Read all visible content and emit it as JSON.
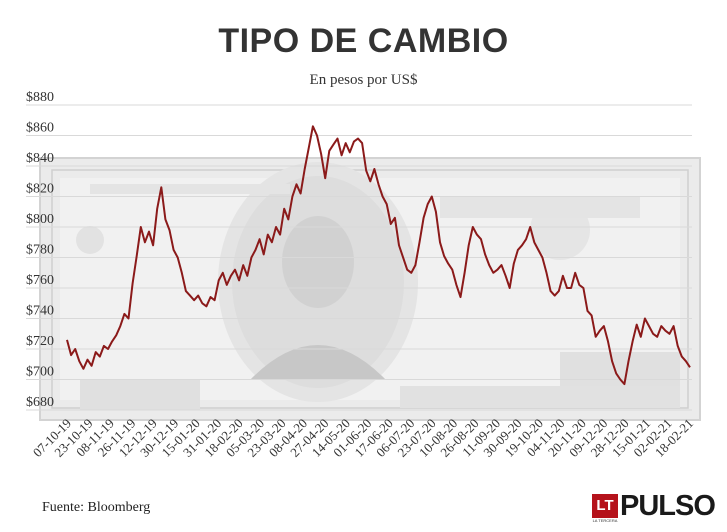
{
  "header": {
    "title": "TIPO DE CAMBIO",
    "subtitle": "En pesos por US$"
  },
  "footer": {
    "source": "Fuente: Bloomberg",
    "brand_box": "LT",
    "brand_box_sub": "LA TERCERA",
    "brand_name": "PULSO"
  },
  "colors": {
    "line": "#8b1a1a",
    "grid": "#d9d9d9",
    "text": "#333333",
    "brand": "#b5121b"
  },
  "background_image": "US 100 dollar banknote (Benjamin Franklin) in grayscale",
  "chart_data": {
    "type": "line",
    "title": "TIPO DE CAMBIO",
    "subtitle": "En pesos por US$",
    "xlabel": "",
    "ylabel": "",
    "ylim": [
      680,
      880
    ],
    "y_ticks": [
      "$680",
      "$700",
      "$720",
      "$740",
      "$760",
      "$780",
      "$800",
      "$820",
      "$840",
      "$860",
      "$880"
    ],
    "y_tick_values": [
      680,
      700,
      720,
      740,
      760,
      780,
      800,
      820,
      840,
      860,
      880
    ],
    "x_ticks": [
      "07-10-19",
      "23-10-19",
      "08-11-19",
      "26-11-19",
      "12-12-19",
      "30-12-19",
      "15-01-20",
      "31-01-20",
      "18-02-20",
      "05-03-20",
      "23-03-20",
      "08-04-20",
      "27-04-20",
      "14-05-20",
      "01-06-20",
      "17-06-20",
      "06-07-20",
      "23-07-20",
      "10-08-20",
      "26-08-20",
      "11-09-20",
      "30-09-20",
      "19-10-20",
      "04-11-20",
      "20-11-20",
      "09-12-20",
      "28-12-20",
      "15-01-21",
      "02-02-21",
      "18-02-21"
    ],
    "grid": true,
    "legend": "none",
    "series": [
      {
        "values": [
          726,
          716,
          720,
          712,
          707,
          713,
          709,
          718,
          715,
          722,
          720,
          725,
          729,
          735,
          743,
          740,
          763,
          781,
          800,
          790,
          797,
          788,
          812,
          826,
          805,
          798,
          785,
          780,
          770,
          758,
          755,
          752,
          755,
          750,
          748,
          754,
          752,
          765,
          770,
          762,
          768,
          772,
          765,
          775,
          768,
          780,
          785,
          792,
          782,
          795,
          790,
          800,
          795,
          812,
          805,
          820,
          828,
          822,
          838,
          852,
          866,
          860,
          848,
          832,
          850,
          854,
          858,
          847,
          855,
          849,
          856,
          858,
          855,
          837,
          830,
          838,
          828,
          820,
          815,
          802,
          806,
          788,
          780,
          772,
          770,
          775,
          790,
          806,
          815,
          820,
          810,
          790,
          781,
          776,
          772,
          762,
          754,
          770,
          788,
          800,
          795,
          792,
          782,
          775,
          770,
          772,
          775,
          768,
          760,
          776,
          785,
          788,
          792,
          800,
          790,
          785,
          780,
          770,
          758,
          755,
          758,
          768,
          760,
          760,
          770,
          762,
          760,
          745,
          742,
          728,
          732,
          735,
          725,
          712,
          704,
          700,
          697,
          712,
          725,
          736,
          728,
          740,
          735,
          730,
          728,
          735,
          732,
          730,
          735,
          722,
          715,
          712,
          708
        ]
      }
    ]
  }
}
